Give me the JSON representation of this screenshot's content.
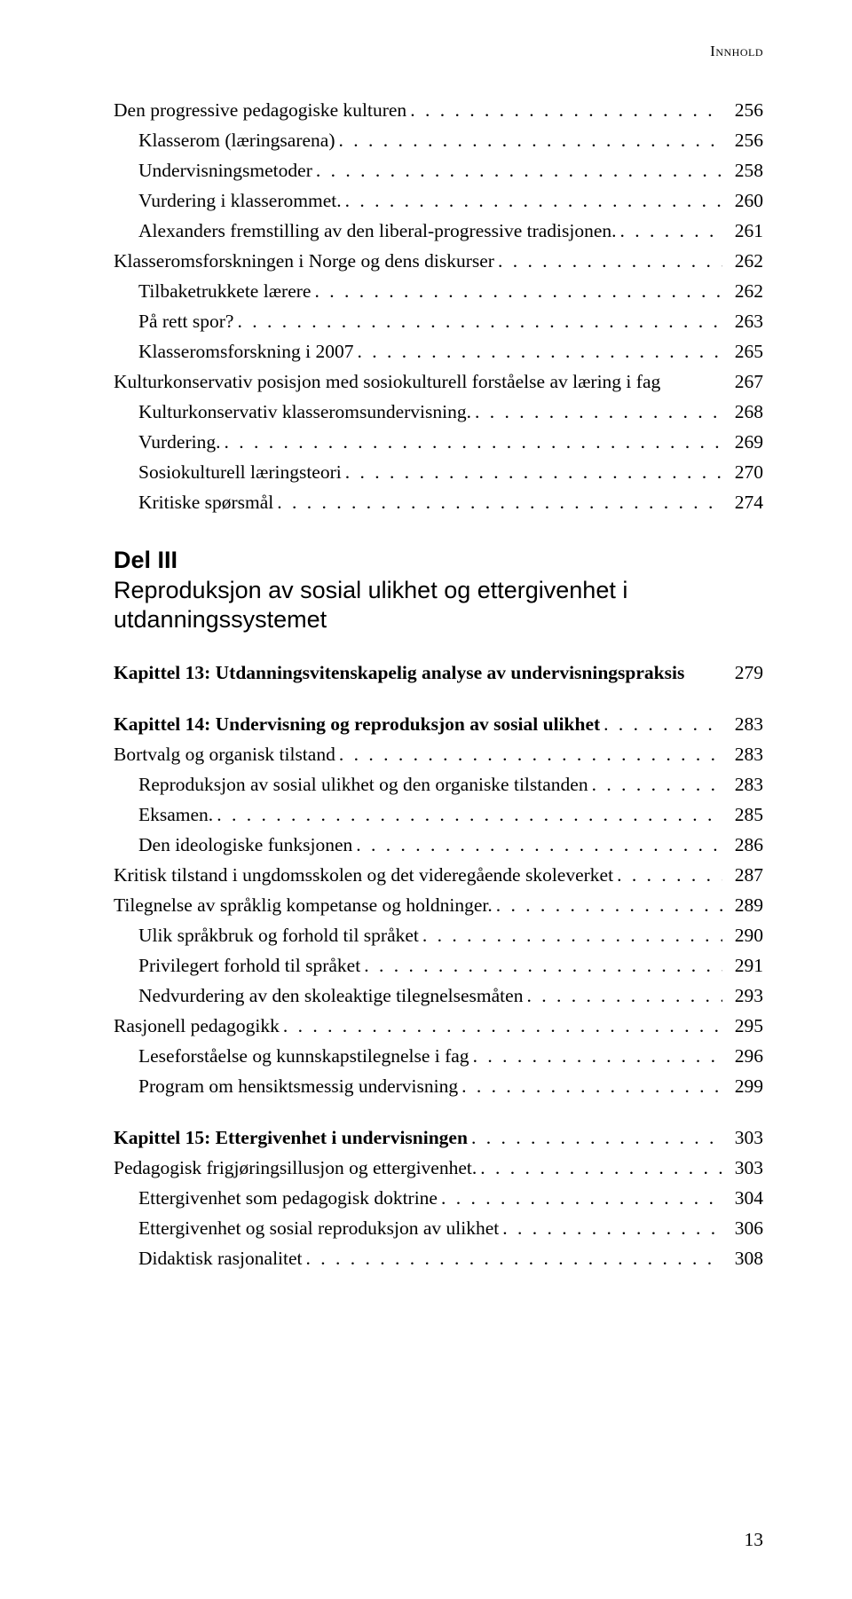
{
  "header": "Innhold",
  "block1": [
    {
      "label": "Den progressive pedagogiske kulturen",
      "page": "256",
      "indent": 0
    },
    {
      "label": "Klasserom (læringsarena)",
      "page": "256",
      "indent": 1
    },
    {
      "label": "Undervisningsmetoder",
      "page": "258",
      "indent": 1
    },
    {
      "label": "Vurdering i klasserommet.",
      "page": "260",
      "indent": 1
    },
    {
      "label": "Alexanders fremstilling av den liberal-progressive tradisjonen.",
      "page": "261",
      "indent": 1
    },
    {
      "label": "Klasseromsforskningen i Norge og dens diskurser",
      "page": "262",
      "indent": 0
    },
    {
      "label": "Tilbaketrukkete lærere",
      "page": "262",
      "indent": 1
    },
    {
      "label": "På rett spor?",
      "page": "263",
      "indent": 1
    },
    {
      "label": "Klasseromsforskning i 2007",
      "page": "265",
      "indent": 1
    },
    {
      "label": "Kulturkonservativ posisjon med sosiokulturell forståelse av læring i fag",
      "page": "267",
      "indent": 0,
      "nodots": true
    },
    {
      "label": "Kulturkonservativ klasseromsundervisning.",
      "page": "268",
      "indent": 1
    },
    {
      "label": "Vurdering.",
      "page": "269",
      "indent": 1
    },
    {
      "label": "Sosiokulturell læringsteori",
      "page": "270",
      "indent": 1
    },
    {
      "label": "Kritiske spørsmål",
      "page": "274",
      "indent": 1
    }
  ],
  "part": {
    "num": "Del III",
    "title": "Reproduksjon av sosial ulikhet og ettergivenhet i utdanningssystemet"
  },
  "block2": [
    {
      "label": "Kapittel 13: Utdanningsvitenskapelig analyse av undervisningspraksis",
      "page": "279",
      "indent": 0,
      "bold": true,
      "nodots": true
    }
  ],
  "block3": [
    {
      "label": "Kapittel 14: Undervisning og reproduksjon av sosial ulikhet",
      "page": "283",
      "indent": 0,
      "bold": true
    },
    {
      "label": "Bortvalg og organisk tilstand",
      "page": "283",
      "indent": 0
    },
    {
      "label": "Reproduksjon av sosial ulikhet og den organiske tilstanden",
      "page": "283",
      "indent": 1
    },
    {
      "label": "Eksamen.",
      "page": "285",
      "indent": 1
    },
    {
      "label": "Den ideologiske funksjonen",
      "page": "286",
      "indent": 1
    },
    {
      "label": "Kritisk tilstand i ungdomsskolen og det videregående skoleverket",
      "page": "287",
      "indent": 0
    },
    {
      "label": "Tilegnelse av språklig kompetanse og holdninger.",
      "page": "289",
      "indent": 0
    },
    {
      "label": "Ulik språkbruk og forhold til språket",
      "page": "290",
      "indent": 1
    },
    {
      "label": "Privilegert forhold til språket",
      "page": "291",
      "indent": 1
    },
    {
      "label": "Nedvurdering av den skoleaktige tilegnelsesmåten",
      "page": "293",
      "indent": 1
    },
    {
      "label": "Rasjonell pedagogikk",
      "page": "295",
      "indent": 0
    },
    {
      "label": "Leseforståelse og kunnskapstilegnelse i fag",
      "page": "296",
      "indent": 1
    },
    {
      "label": "Program om hensiktsmessig undervisning",
      "page": "299",
      "indent": 1
    }
  ],
  "block4": [
    {
      "label": "Kapittel 15: Ettergivenhet i undervisningen",
      "page": "303",
      "indent": 0,
      "bold": true
    },
    {
      "label": "Pedagogisk frigjøringsillusjon og ettergivenhet.",
      "page": "303",
      "indent": 0
    },
    {
      "label": "Ettergivenhet som pedagogisk doktrine",
      "page": "304",
      "indent": 1
    },
    {
      "label": "Ettergivenhet og sosial reproduksjon av ulikhet",
      "page": "306",
      "indent": 1
    },
    {
      "label": "Didaktisk rasjonalitet",
      "page": "308",
      "indent": 1
    }
  ],
  "footer": "13"
}
